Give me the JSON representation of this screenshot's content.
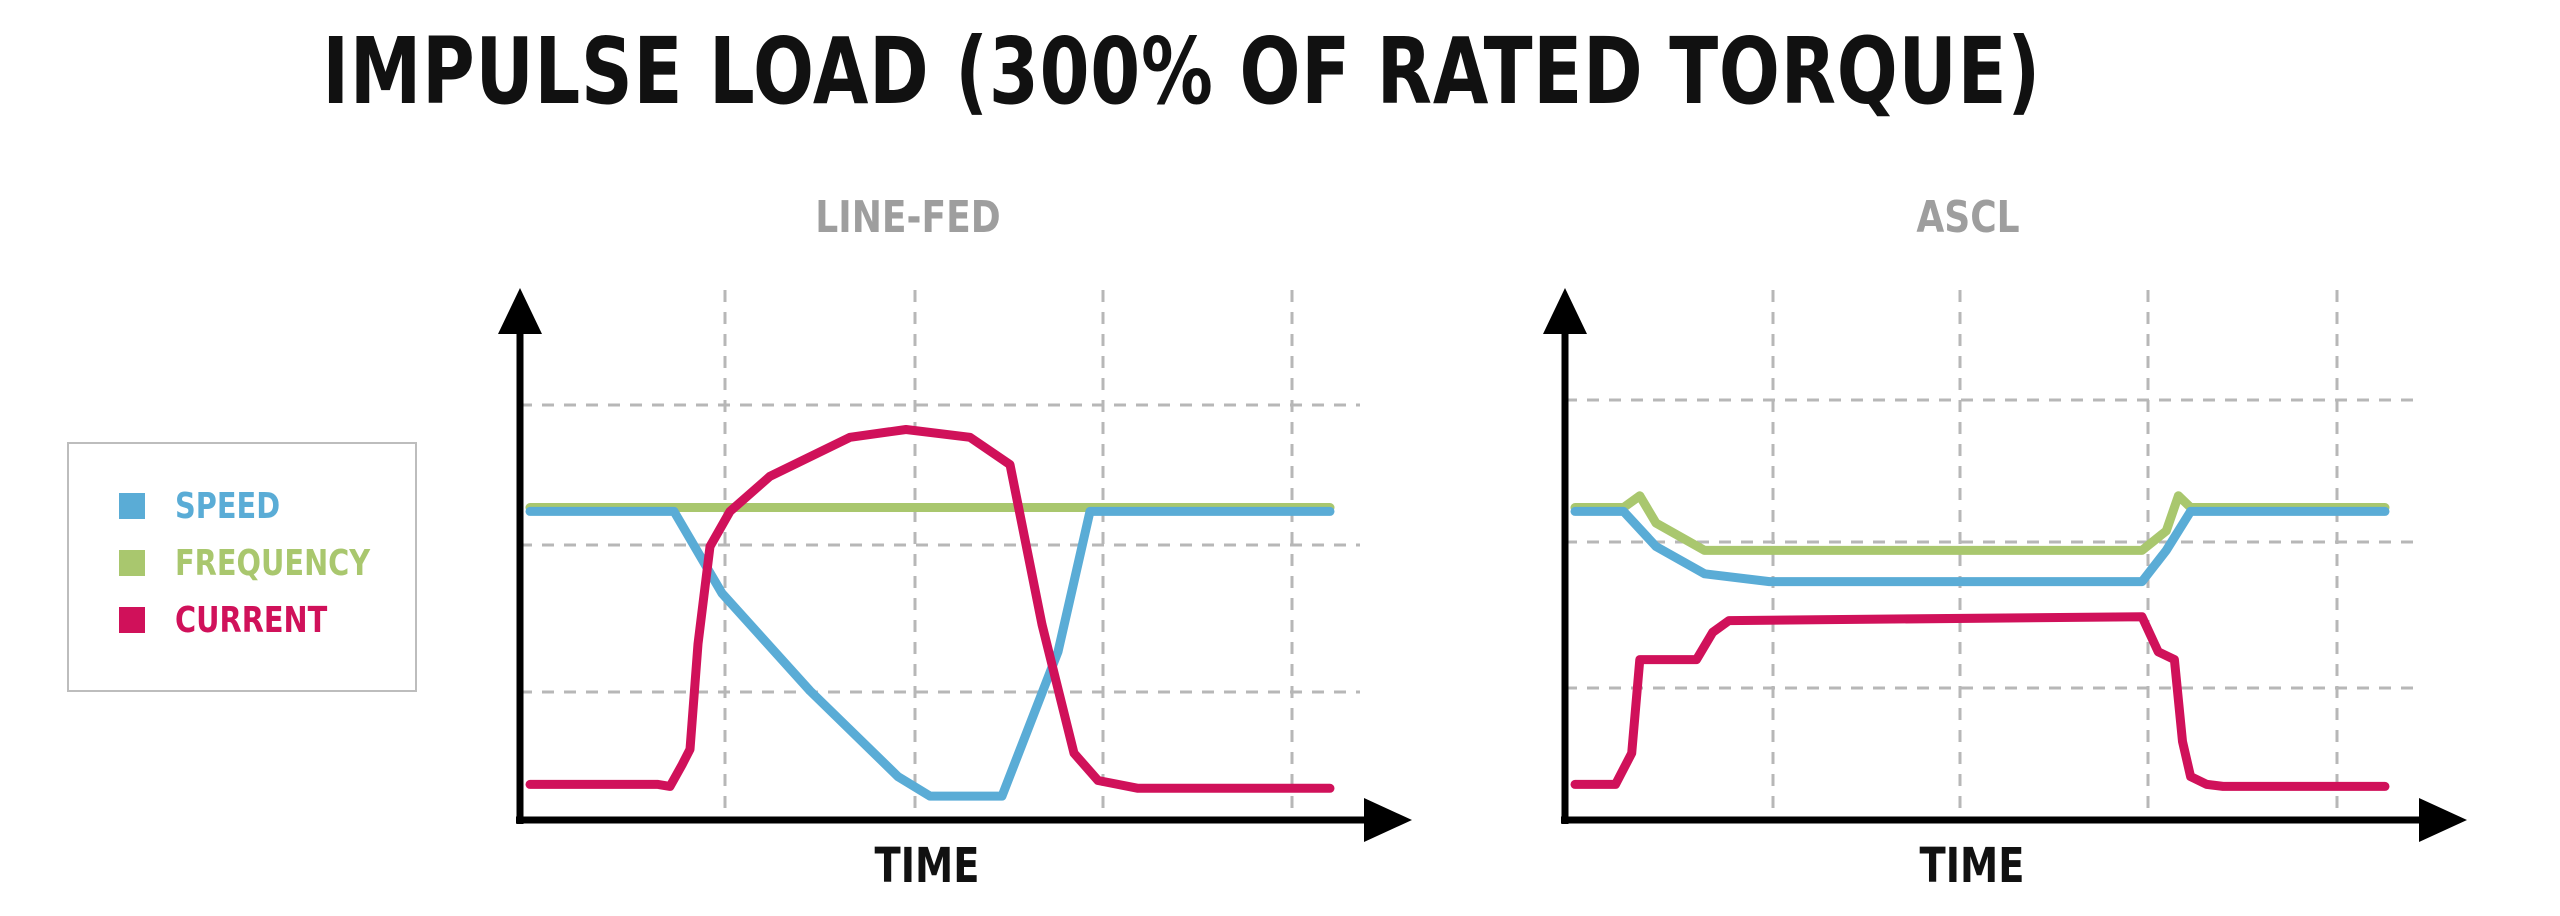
{
  "title": "IMPULSE LOAD (300% OF RATED TORQUE)",
  "legend": [
    {
      "label": "SPEED",
      "color": "#5aacd6"
    },
    {
      "label": "FREQUENCY",
      "color": "#a9c76e"
    },
    {
      "label": "CURRENT",
      "color": "#d0115a"
    }
  ],
  "colors": {
    "grid": "#b7b7b7",
    "axis": "#000000"
  },
  "chart_data": [
    {
      "type": "line",
      "title": "LINE-FED",
      "xlabel": "TIME",
      "ylabel": "",
      "xlim": [
        0,
        10
      ],
      "ylim": [
        0,
        10
      ],
      "grid": true,
      "series": [
        {
          "name": "FREQUENCY",
          "x": [
            0,
            10
          ],
          "values": [
            7.5,
            7.5
          ]
        },
        {
          "name": "SPEED",
          "x": [
            0,
            1.8,
            2.4,
            3.5,
            4.6,
            5.0,
            5.4,
            5.9,
            6.6,
            7.0,
            10
          ],
          "values": [
            7.4,
            7.4,
            5.3,
            2.8,
            0.6,
            0.1,
            0.1,
            0.1,
            3.8,
            7.4,
            7.4
          ]
        },
        {
          "name": "CURRENT",
          "x": [
            0,
            1.6,
            1.75,
            1.9,
            2.0,
            2.1,
            2.25,
            2.5,
            3.0,
            4.0,
            4.7,
            5.5,
            6.0,
            6.4,
            6.8,
            7.1,
            7.6,
            10
          ],
          "values": [
            0.4,
            0.4,
            0.35,
            0.9,
            1.3,
            4.0,
            6.5,
            7.4,
            8.3,
            9.3,
            9.5,
            9.3,
            8.6,
            4.5,
            1.2,
            0.5,
            0.3,
            0.3
          ]
        }
      ]
    },
    {
      "type": "line",
      "title": "ASCL",
      "xlabel": "TIME",
      "ylabel": "",
      "xlim": [
        0,
        10
      ],
      "ylim": [
        0,
        10
      ],
      "grid": true,
      "series": [
        {
          "name": "FREQUENCY",
          "x": [
            0,
            0.6,
            0.8,
            1.0,
            1.6,
            7.0,
            7.3,
            7.45,
            7.6,
            10
          ],
          "values": [
            7.5,
            7.5,
            7.8,
            7.1,
            6.4,
            6.4,
            6.9,
            7.8,
            7.5,
            7.5
          ]
        },
        {
          "name": "SPEED",
          "x": [
            0,
            0.6,
            1.0,
            1.6,
            2.4,
            7.0,
            7.3,
            7.6,
            10
          ],
          "values": [
            7.4,
            7.4,
            6.5,
            5.8,
            5.6,
            5.6,
            6.4,
            7.4,
            7.4
          ]
        },
        {
          "name": "CURRENT",
          "x": [
            0,
            0.5,
            0.7,
            0.8,
            0.9,
            1.5,
            1.7,
            1.9,
            7.0,
            7.2,
            7.4,
            7.5,
            7.6,
            7.8,
            8.0,
            10
          ],
          "values": [
            0.4,
            0.4,
            1.2,
            3.6,
            3.6,
            3.6,
            4.3,
            4.6,
            4.7,
            3.8,
            3.6,
            1.5,
            0.6,
            0.4,
            0.35,
            0.35
          ]
        }
      ]
    }
  ]
}
